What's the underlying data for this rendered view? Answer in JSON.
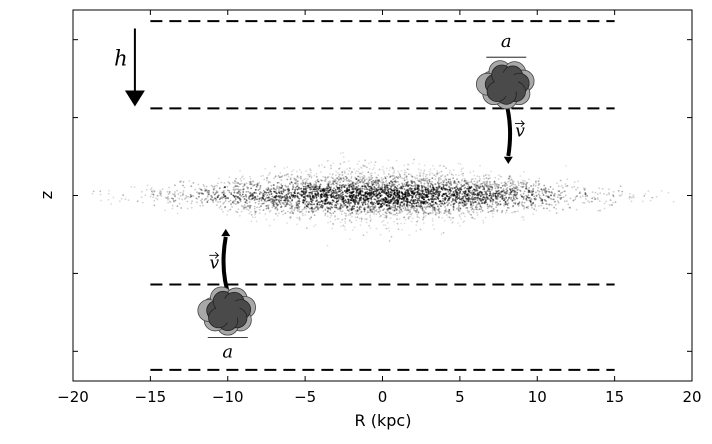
{
  "chart_data": {
    "type": "scatter",
    "title": "",
    "xlabel": "R (kpc)",
    "ylabel": "z",
    "xlim": [
      -20,
      20
    ],
    "ylim": [
      -1,
      1
    ],
    "xticks": [
      -20,
      -15,
      -10,
      -5,
      0,
      5,
      10,
      15,
      20
    ],
    "xtick_labels": [
      "−20",
      "−15",
      "−10",
      "−5",
      "0",
      "5",
      "10",
      "15",
      "20"
    ],
    "yticks": [
      -0.84,
      -0.42,
      0,
      0.42,
      0.84
    ],
    "ytick_labels": [
      "",
      "",
      "",
      "",
      ""
    ],
    "grid": false,
    "legend": "none",
    "disk": {
      "description_points": "dense point cloud of disk stars centred at z=0",
      "center_x": 0,
      "x_extent": [
        -19,
        19
      ],
      "half_thickness": 0.12,
      "color": "#000000"
    },
    "dashed_lines": [
      {
        "y": 0.94,
        "x": [
          -15,
          15
        ]
      },
      {
        "y": 0.47,
        "x": [
          -15,
          15
        ]
      },
      {
        "y": -0.48,
        "x": [
          -15,
          15
        ]
      },
      {
        "y": -0.94,
        "x": [
          -15,
          15
        ]
      }
    ],
    "annotations": [
      {
        "label": "h",
        "x": -16,
        "y_from": 0.9,
        "y_to": 0.48
      },
      {
        "label": "a",
        "cloud_x": 8,
        "cloud_y": 0.6,
        "arrow_to_y": 0.17
      },
      {
        "label": "v",
        "x": 8.5,
        "y": 0.35
      },
      {
        "label": "a",
        "cloud_x": -10,
        "cloud_y": -0.62,
        "arrow_to_y": -0.18
      },
      {
        "label": "v",
        "x": -11,
        "y": -0.36
      }
    ]
  }
}
